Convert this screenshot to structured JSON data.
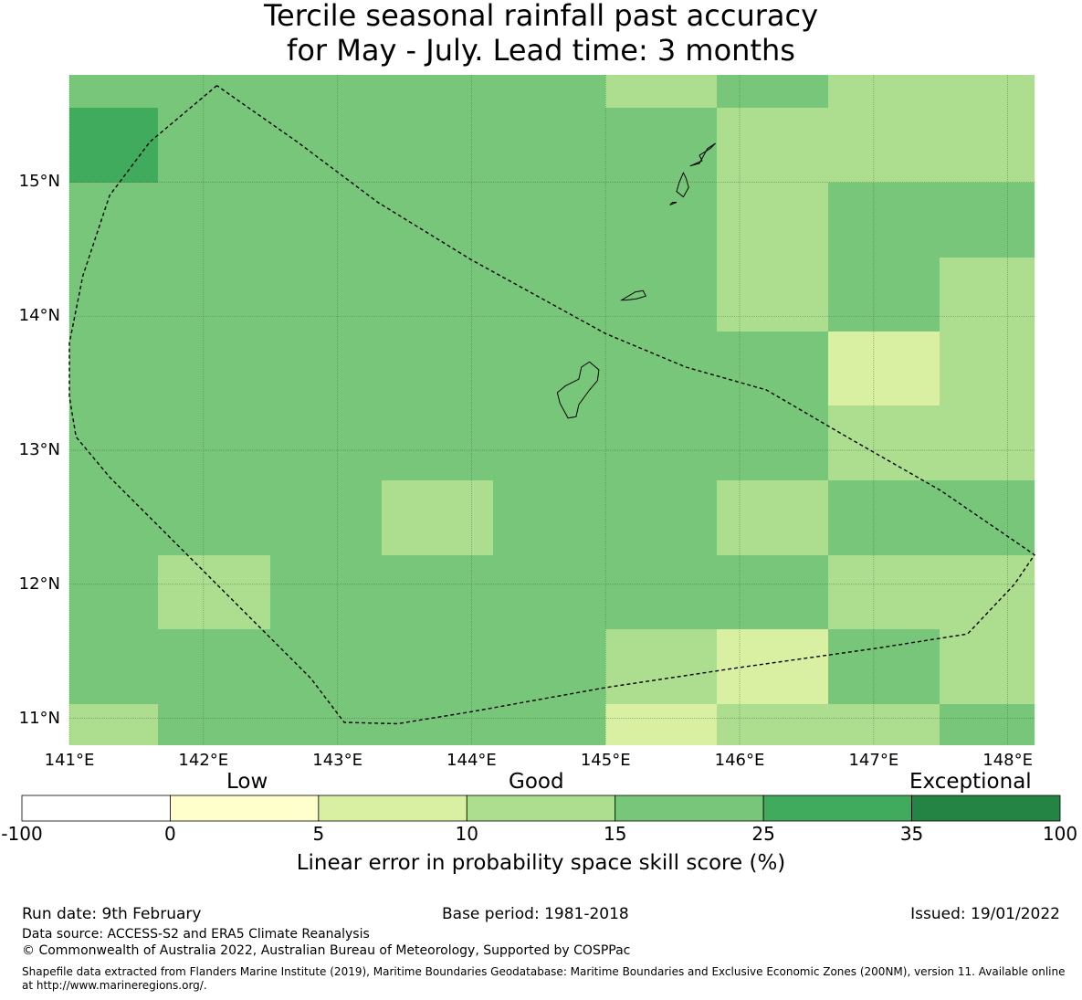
{
  "title": {
    "line1": "Tercile seasonal rainfall past accuracy",
    "line2": "for May - July. Lead time: 3 months"
  },
  "map": {
    "lon_range": [
      141.0,
      148.2
    ],
    "lat_range": [
      10.8,
      15.8
    ],
    "cell_size_deg": 0.833,
    "lat_ticks": [
      {
        "value": 15,
        "label": "15°N"
      },
      {
        "value": 14,
        "label": "14°N"
      },
      {
        "value": 13,
        "label": "13°N"
      },
      {
        "value": 12,
        "label": "12°N"
      },
      {
        "value": 11,
        "label": "11°N"
      }
    ],
    "lon_ticks": [
      {
        "value": 141,
        "label": "141°E"
      },
      {
        "value": 142,
        "label": "142°E"
      },
      {
        "value": 143,
        "label": "143°E"
      },
      {
        "value": 144,
        "label": "144°E"
      },
      {
        "value": 145,
        "label": "145°E"
      },
      {
        "value": 146,
        "label": "146°E"
      },
      {
        "value": 147,
        "label": "147°E"
      },
      {
        "value": 148,
        "label": "148°E"
      }
    ],
    "skill_grid_rows_north_to_south": [
      [
        "15-25",
        "15-25",
        "15-25",
        "15-25",
        "15-25",
        "10-15",
        "15-25",
        "10-15",
        "10-15"
      ],
      [
        "25-35",
        "15-25",
        "15-25",
        "15-25",
        "15-25",
        "15-25",
        "10-15",
        "10-15",
        "10-15"
      ],
      [
        "15-25",
        "15-25",
        "15-25",
        "15-25",
        "15-25",
        "15-25",
        "10-15",
        "15-25",
        "15-25"
      ],
      [
        "15-25",
        "15-25",
        "15-25",
        "15-25",
        "15-25",
        "15-25",
        "10-15",
        "15-25",
        "10-15"
      ],
      [
        "15-25",
        "15-25",
        "15-25",
        "15-25",
        "15-25",
        "15-25",
        "15-25",
        "5-10",
        "10-15"
      ],
      [
        "15-25",
        "15-25",
        "15-25",
        "15-25",
        "15-25",
        "15-25",
        "15-25",
        "10-15",
        "10-15"
      ],
      [
        "15-25",
        "15-25",
        "15-25",
        "10-15",
        "15-25",
        "15-25",
        "10-15",
        "15-25",
        "15-25"
      ],
      [
        "15-25",
        "10-15",
        "15-25",
        "15-25",
        "15-25",
        "15-25",
        "15-25",
        "10-15",
        "10-15"
      ],
      [
        "15-25",
        "15-25",
        "15-25",
        "15-25",
        "15-25",
        "10-15",
        "5-10",
        "15-25",
        "10-15"
      ],
      [
        "10-15",
        "15-25",
        "15-25",
        "15-25",
        "15-25",
        "5-10",
        "10-15",
        "10-15",
        "15-25"
      ]
    ],
    "eez_boundary": [
      [
        142.1,
        15.72
      ],
      [
        141.6,
        15.3
      ],
      [
        141.3,
        14.9
      ],
      [
        141.1,
        14.3
      ],
      [
        141.0,
        13.8
      ],
      [
        141.0,
        13.4
      ],
      [
        141.05,
        13.1
      ],
      [
        141.3,
        12.8
      ],
      [
        141.8,
        12.3
      ],
      [
        142.3,
        11.8
      ],
      [
        142.8,
        11.3
      ],
      [
        143.05,
        10.97
      ],
      [
        143.45,
        10.96
      ],
      [
        144.0,
        11.05
      ],
      [
        145.0,
        11.23
      ],
      [
        146.0,
        11.38
      ],
      [
        147.0,
        11.52
      ],
      [
        147.7,
        11.63
      ],
      [
        148.05,
        12.0
      ],
      [
        148.2,
        12.22
      ],
      [
        147.5,
        12.7
      ],
      [
        146.8,
        13.1
      ],
      [
        146.2,
        13.45
      ],
      [
        145.6,
        13.62
      ],
      [
        145.0,
        13.87
      ],
      [
        144.0,
        14.42
      ],
      [
        143.3,
        14.85
      ],
      [
        142.7,
        15.3
      ],
      [
        142.1,
        15.72
      ]
    ],
    "islands": [
      [
        [
          144.95,
          13.6
        ],
        [
          144.88,
          13.66
        ],
        [
          144.82,
          13.62
        ],
        [
          144.8,
          13.53
        ],
        [
          144.7,
          13.48
        ],
        [
          144.64,
          13.43
        ],
        [
          144.66,
          13.35
        ],
        [
          144.72,
          13.24
        ],
        [
          144.78,
          13.25
        ],
        [
          144.8,
          13.34
        ],
        [
          144.88,
          13.45
        ],
        [
          144.94,
          13.52
        ]
      ],
      [
        [
          145.7,
          15.2
        ],
        [
          145.78,
          15.25
        ],
        [
          145.82,
          15.29
        ],
        [
          145.76,
          15.25
        ],
        [
          145.7,
          15.14
        ],
        [
          145.63,
          15.12
        ],
        [
          145.72,
          15.16
        ]
      ],
      [
        [
          145.58,
          15.07
        ],
        [
          145.6,
          15.03
        ],
        [
          145.62,
          14.96
        ],
        [
          145.58,
          14.89
        ],
        [
          145.53,
          14.93
        ],
        [
          145.55,
          15.0
        ]
      ],
      [
        [
          145.22,
          14.18
        ],
        [
          145.28,
          14.19
        ],
        [
          145.3,
          14.15
        ],
        [
          145.23,
          14.13
        ],
        [
          145.15,
          14.12
        ],
        [
          145.12,
          14.12
        ]
      ],
      [
        [
          145.48,
          14.83
        ],
        [
          145.53,
          14.85
        ],
        [
          145.5,
          14.85
        ]
      ]
    ]
  },
  "colorbar": {
    "categories": [
      {
        "label": "Low"
      },
      {
        "label": "Good"
      },
      {
        "label": "Exceptional"
      }
    ],
    "bins": [
      {
        "range": "-100-0",
        "color": "#ffffff"
      },
      {
        "range": "0-5",
        "color": "#ffffcc"
      },
      {
        "range": "5-10",
        "color": "#d9f0a3"
      },
      {
        "range": "10-15",
        "color": "#addd8e"
      },
      {
        "range": "15-25",
        "color": "#78c679"
      },
      {
        "range": "25-35",
        "color": "#41ab5d"
      },
      {
        "range": "35-100",
        "color": "#238443"
      }
    ],
    "ticks": [
      "-100",
      "0",
      "5",
      "10",
      "15",
      "25",
      "35",
      "100"
    ],
    "title": "Linear error in probability space skill score (%)"
  },
  "colors": {
    "5-10": "#d9f0a3",
    "10-15": "#addd8e",
    "15-25": "#78c679",
    "25-35": "#41ab5d"
  },
  "footer": {
    "run_date": "Run date: 9th February",
    "base_period": "Base period: 1981-2018",
    "issued": "Issued: 19/01/2022",
    "data_source": "Data source: ACCESS-S2 and ERA5 Climate Reanalysis",
    "copyright": "© Commonwealth of Australia 2022, Australian Bureau of Meteorology, Supported by COSPPac",
    "shapefile_line1": "Shapefile data extracted from Flanders Marine Institute (2019), Maritime Boundaries Geodatabase: Maritime Boundaries and Exclusive Economic Zones (200NM), version 11. Available online",
    "shapefile_line2": "at http://www.marineregions.org/."
  }
}
